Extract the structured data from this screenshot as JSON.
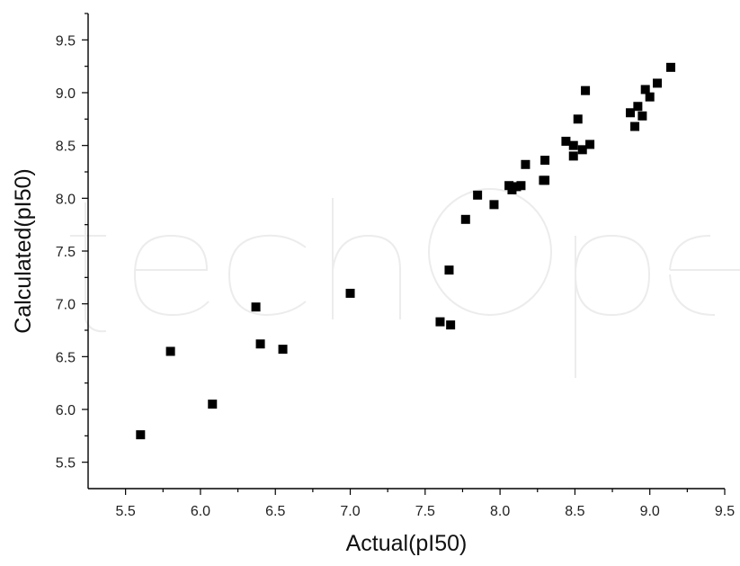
{
  "chart_data": {
    "type": "scatter",
    "title": "",
    "xlabel": "Actual(pI50)",
    "ylabel": "Calculated(pI50)",
    "xlim": [
      5.25,
      9.5
    ],
    "ylim": [
      5.25,
      9.75
    ],
    "x_ticks": [
      "5.5",
      "6.0",
      "6.5",
      "7.0",
      "7.5",
      "8.0",
      "8.5",
      "9.0",
      "9.5"
    ],
    "y_ticks": [
      "5.5",
      "6.0",
      "6.5",
      "7.0",
      "7.5",
      "8.0",
      "8.5",
      "9.0",
      "9.5"
    ],
    "grid": false,
    "marker": "square",
    "marker_color": "#000000",
    "watermark": "IntechOpen",
    "series": [
      {
        "points": [
          [
            5.6,
            5.76
          ],
          [
            5.8,
            6.55
          ],
          [
            6.08,
            6.05
          ],
          [
            6.37,
            6.97
          ],
          [
            6.4,
            6.62
          ],
          [
            6.55,
            6.57
          ],
          [
            7.0,
            7.1
          ],
          [
            7.6,
            6.83
          ],
          [
            7.66,
            7.32
          ],
          [
            7.67,
            6.8
          ],
          [
            7.77,
            7.8
          ],
          [
            7.85,
            8.03
          ],
          [
            7.96,
            7.94
          ],
          [
            8.06,
            8.12
          ],
          [
            8.08,
            8.08
          ],
          [
            8.11,
            8.11
          ],
          [
            8.14,
            8.12
          ],
          [
            8.17,
            8.32
          ],
          [
            8.29,
            8.17
          ],
          [
            8.3,
            8.17
          ],
          [
            8.3,
            8.36
          ],
          [
            8.44,
            8.54
          ],
          [
            8.49,
            8.5
          ],
          [
            8.49,
            8.4
          ],
          [
            8.52,
            8.75
          ],
          [
            8.55,
            8.46
          ],
          [
            8.57,
            9.02
          ],
          [
            8.6,
            8.51
          ],
          [
            8.87,
            8.81
          ],
          [
            8.9,
            8.68
          ],
          [
            8.92,
            8.87
          ],
          [
            8.95,
            8.78
          ],
          [
            8.97,
            9.03
          ],
          [
            9.0,
            8.96
          ],
          [
            9.05,
            9.09
          ],
          [
            9.14,
            9.24
          ]
        ]
      }
    ]
  }
}
